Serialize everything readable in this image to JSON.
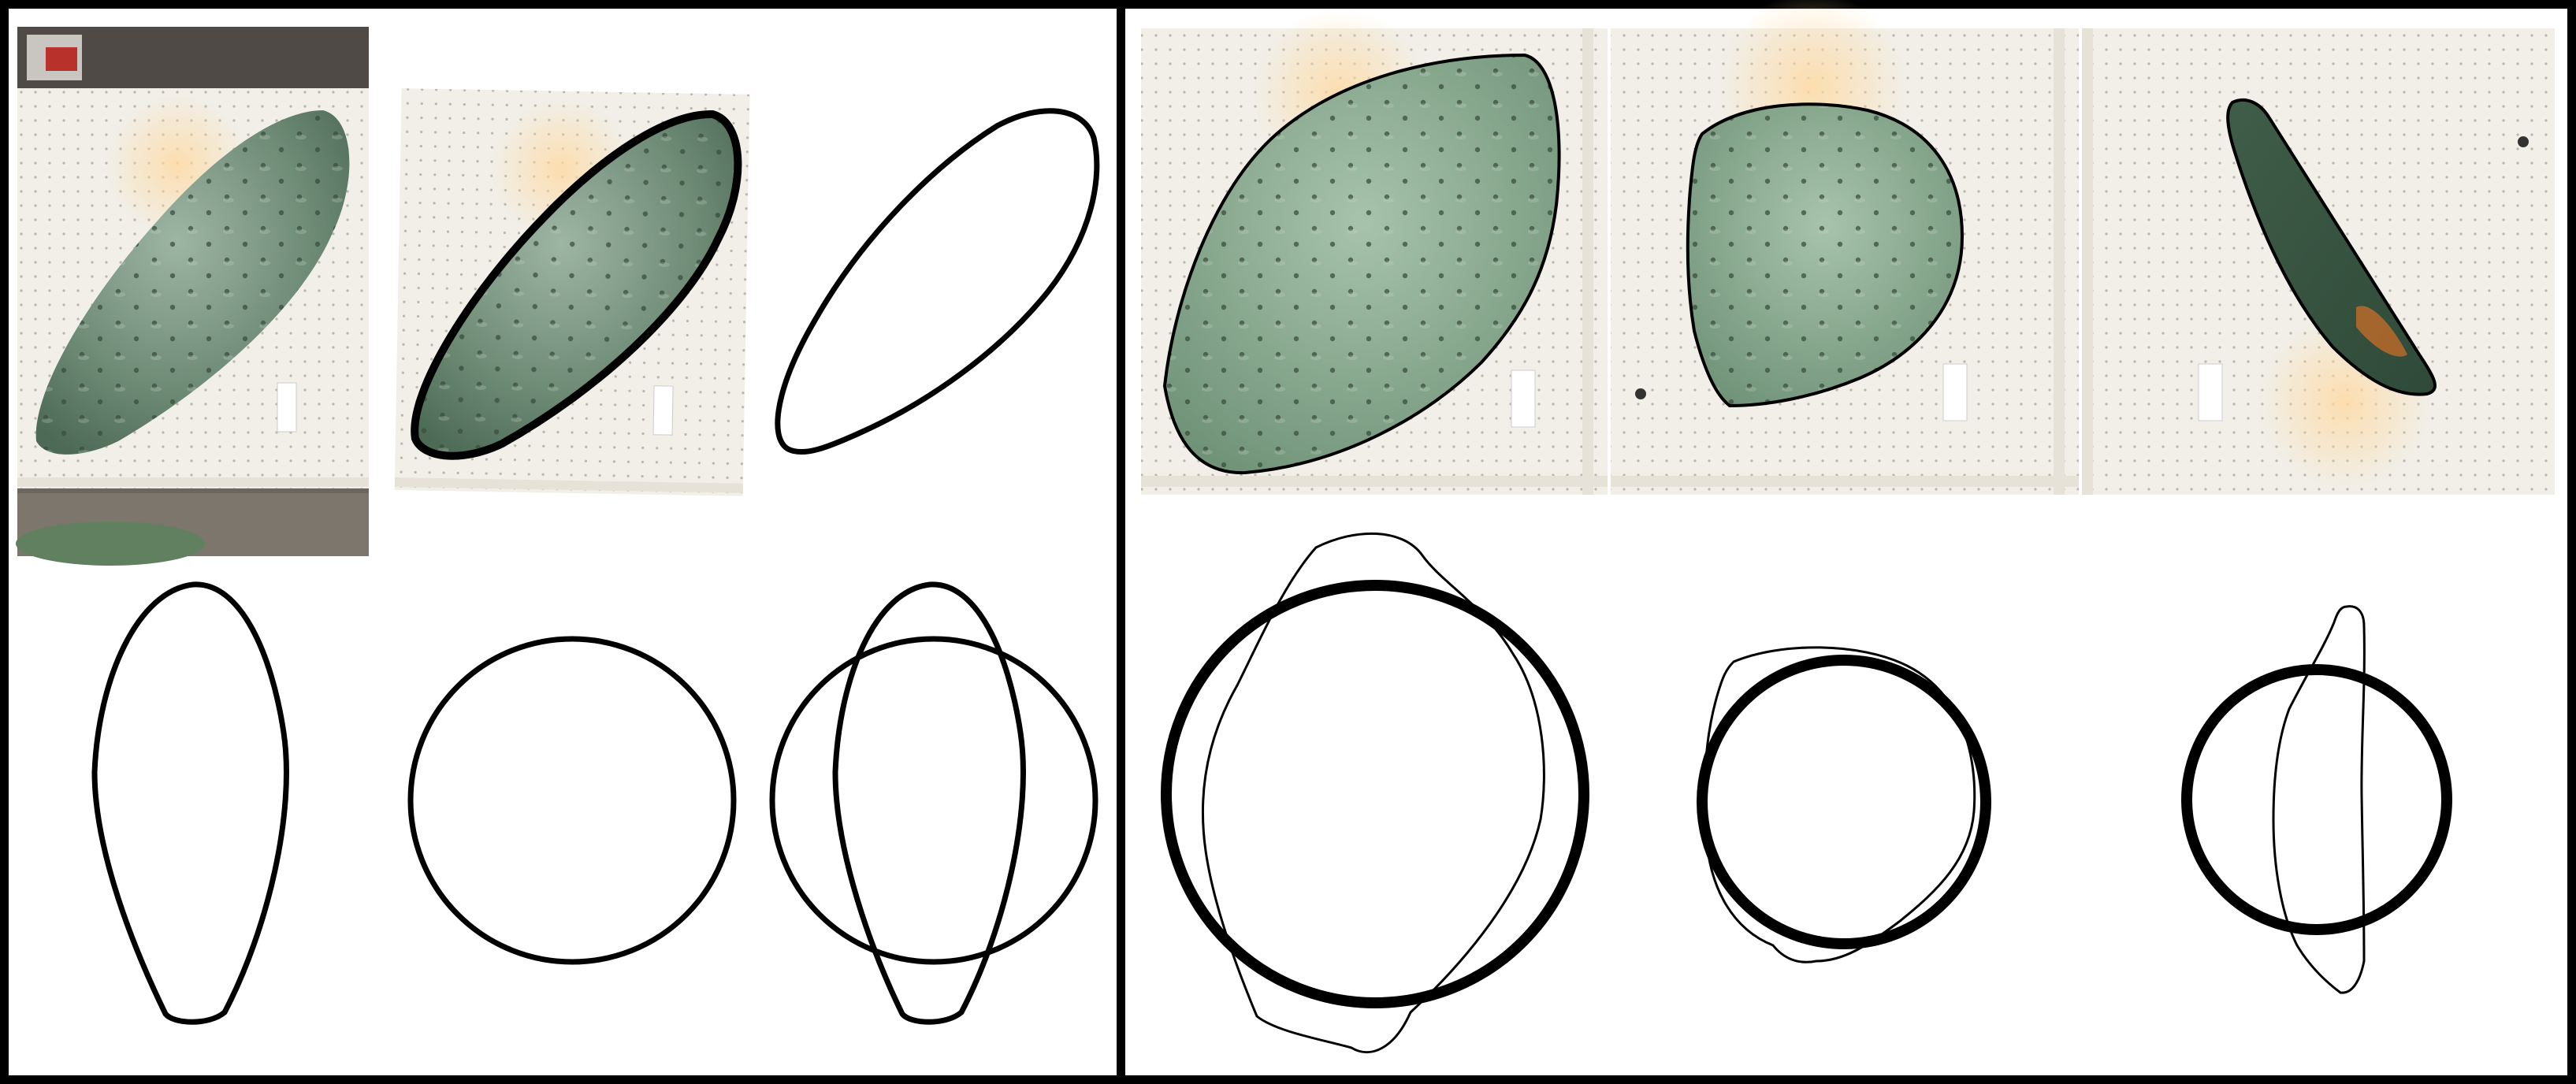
{
  "figure": {
    "panels": [
      {
        "id": "left",
        "photo_count": 2,
        "outline_shapes": [
          "single-outline",
          "elongated-outline",
          "reference-circle",
          "outline-over-circle-overlay"
        ]
      },
      {
        "id": "right",
        "photo_count": 3,
        "pad_shapes": [
          "broad-oval",
          "near-circle",
          "slender-crescent"
        ],
        "overlay_count": 3
      }
    ],
    "colors": {
      "background": "#ffffff",
      "frame": "#000000",
      "pad_green": "#71907a",
      "pad_dark_green": "#3e5c47",
      "board_white": "#f1efe8",
      "grid_dot": "#b9b6ad",
      "stain_orange": "#b96a2a"
    }
  }
}
